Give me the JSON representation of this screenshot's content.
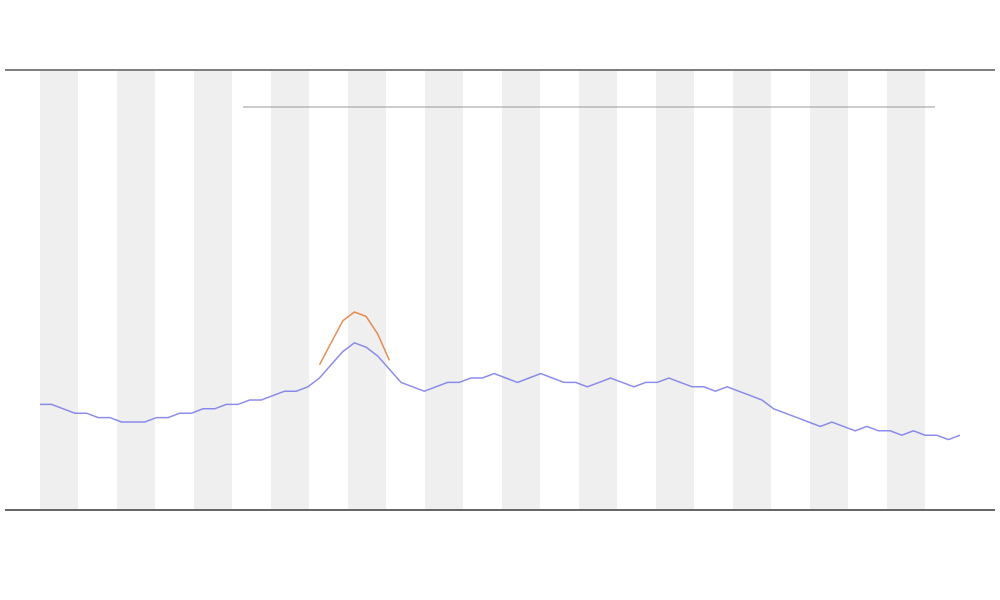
{
  "chart_data": {
    "type": "line",
    "ylim": [
      0,
      100
    ],
    "series": [
      {
        "color": "#6f6fe8",
        "values": [
          24,
          24,
          23,
          22,
          22,
          21,
          21,
          20,
          20,
          20,
          21,
          21,
          22,
          22,
          23,
          23,
          24,
          24,
          25,
          25,
          26,
          27,
          27,
          28,
          30,
          33,
          36,
          38,
          37,
          35,
          32,
          29,
          28,
          27,
          28,
          29,
          29,
          30,
          30,
          31,
          30,
          29,
          30,
          31,
          30,
          29,
          29,
          28,
          29,
          30,
          29,
          28,
          29,
          29,
          30,
          29,
          28,
          28,
          27,
          28,
          27,
          26,
          25,
          23,
          22,
          21,
          20,
          19,
          20,
          19,
          18,
          19,
          18,
          18,
          17,
          18,
          17,
          17,
          16,
          17
        ]
      },
      {
        "color": "#e0702a",
        "values": [
          null,
          null,
          null,
          null,
          null,
          null,
          null,
          null,
          null,
          null,
          null,
          null,
          null,
          null,
          null,
          null,
          null,
          null,
          null,
          null,
          null,
          null,
          null,
          null,
          33,
          38,
          43,
          45,
          44,
          40,
          34,
          null,
          null,
          null,
          null,
          null,
          null,
          null,
          null,
          null,
          null,
          null,
          null,
          null,
          null,
          null,
          null,
          null,
          null,
          null,
          null,
          null,
          null,
          null,
          null,
          null,
          null,
          null,
          null,
          null,
          null,
          null,
          null,
          null,
          null,
          null,
          null,
          null,
          null,
          null,
          null,
          null,
          null,
          null,
          null,
          null,
          null,
          null,
          null,
          null
        ]
      }
    ]
  }
}
